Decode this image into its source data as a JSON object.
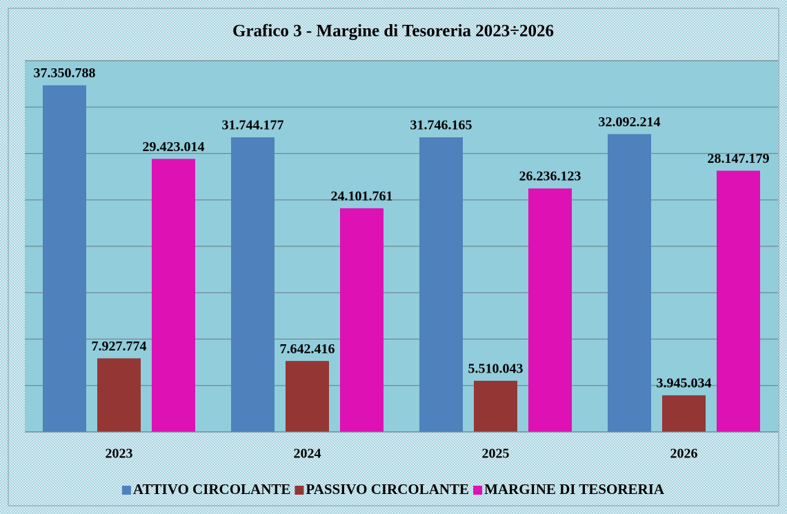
{
  "chart_data": {
    "type": "bar",
    "title": "Grafico 3 - Margine di Tesoreria 2023÷2026",
    "categories": [
      "2023",
      "2024",
      "2025",
      "2026"
    ],
    "series": [
      {
        "name": "ATTIVO CIRCOLANTE",
        "color": "#4f81bd",
        "values": [
          37350788,
          31744177,
          31746165,
          32092214
        ],
        "value_labels": [
          "37.350.788",
          "31.744.177",
          "31.746.165",
          "32.092.214"
        ]
      },
      {
        "name": "PASSIVO CIRCOLANTE",
        "color": "#943634",
        "values": [
          7927774,
          7642416,
          5510043,
          3945034
        ],
        "value_labels": [
          "7.927.774",
          "7.642.416",
          "5.510.043",
          "3.945.034"
        ]
      },
      {
        "name": "MARGINE DI TESORERIA",
        "color": "#dd11b4",
        "values": [
          29423014,
          24101761,
          26236123,
          28147179
        ],
        "value_labels": [
          "29.423.014",
          "24.101.761",
          "26.236.123",
          "28.147.179"
        ]
      }
    ],
    "ylim": [
      0,
      40000000
    ],
    "yticks": [
      0,
      5000000,
      10000000,
      15000000,
      20000000,
      25000000,
      30000000,
      35000000,
      40000000
    ],
    "grid": true,
    "legend": "bottom"
  }
}
